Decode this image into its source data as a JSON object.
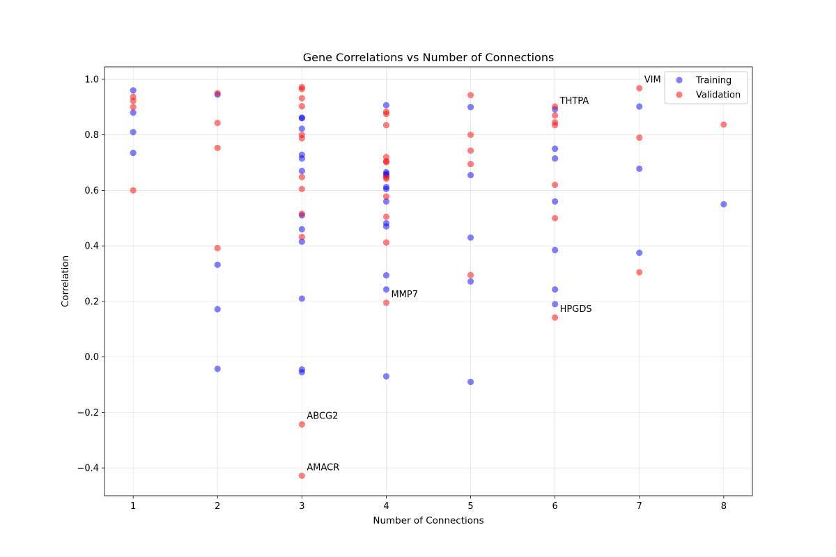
{
  "chart_data": {
    "type": "scatter",
    "title": "Gene Correlations vs Number of Connections",
    "xlabel": "Number of Connections",
    "ylabel": "Correlation",
    "xlim": [
      0.66,
      8.34
    ],
    "ylim": [
      -0.5,
      1.045
    ],
    "x_ticks": [
      1,
      2,
      3,
      4,
      5,
      6,
      7,
      8
    ],
    "y_ticks": [
      -0.4,
      -0.2,
      0.0,
      0.2,
      0.4,
      0.6,
      0.8,
      1.0
    ],
    "y_tick_labels": [
      "−0.4",
      "−0.2",
      "0.0",
      "0.2",
      "0.4",
      "0.6",
      "0.8",
      "1.0"
    ],
    "grid": true,
    "legend_position": "upper right",
    "series": [
      {
        "name": "Training",
        "color": "#0000ff",
        "points": [
          [
            1,
            0.96
          ],
          [
            1,
            0.88
          ],
          [
            1,
            0.81
          ],
          [
            1,
            0.735
          ],
          [
            2,
            0.945
          ],
          [
            2,
            0.332
          ],
          [
            2,
            0.172
          ],
          [
            2,
            -0.043
          ],
          [
            3,
            0.862
          ],
          [
            3,
            0.86
          ],
          [
            3,
            0.822
          ],
          [
            3,
            0.728
          ],
          [
            3,
            0.715
          ],
          [
            3,
            0.67
          ],
          [
            3,
            0.51
          ],
          [
            3,
            0.46
          ],
          [
            3,
            0.415
          ],
          [
            3,
            0.21
          ],
          [
            3,
            -0.045
          ],
          [
            3,
            -0.055
          ],
          [
            4,
            0.907
          ],
          [
            4,
            0.665
          ],
          [
            4,
            0.66
          ],
          [
            4,
            0.655
          ],
          [
            4,
            0.612
          ],
          [
            4,
            0.605
          ],
          [
            4,
            0.56
          ],
          [
            4,
            0.482
          ],
          [
            4,
            0.47
          ],
          [
            4,
            0.294
          ],
          [
            4,
            0.243
          ],
          [
            4,
            -0.07
          ],
          [
            5,
            0.9
          ],
          [
            5,
            0.655
          ],
          [
            5,
            0.43
          ],
          [
            5,
            0.272
          ],
          [
            5,
            -0.09
          ],
          [
            6,
            0.892
          ],
          [
            6,
            0.75
          ],
          [
            6,
            0.715
          ],
          [
            6,
            0.56
          ],
          [
            6,
            0.385
          ],
          [
            6,
            0.243
          ],
          [
            6,
            0.19
          ],
          [
            7,
            0.902
          ],
          [
            7,
            0.678
          ],
          [
            7,
            0.375
          ],
          [
            8,
            0.55
          ]
        ]
      },
      {
        "name": "Validation",
        "color": "#ff0000",
        "points": [
          [
            1,
            0.937
          ],
          [
            1,
            0.922
          ],
          [
            1,
            0.9
          ],
          [
            1,
            0.6
          ],
          [
            2,
            0.95
          ],
          [
            2,
            0.843
          ],
          [
            2,
            0.753
          ],
          [
            2,
            0.392
          ],
          [
            3,
            0.972
          ],
          [
            3,
            0.965
          ],
          [
            3,
            0.932
          ],
          [
            3,
            0.903
          ],
          [
            3,
            0.8
          ],
          [
            3,
            0.788
          ],
          [
            3,
            0.648
          ],
          [
            3,
            0.605
          ],
          [
            3,
            0.516
          ],
          [
            3,
            0.432
          ],
          [
            3,
            -0.243
          ],
          [
            3,
            -0.428
          ],
          [
            4,
            0.883
          ],
          [
            4,
            0.875
          ],
          [
            4,
            0.835
          ],
          [
            4,
            0.72
          ],
          [
            4,
            0.705
          ],
          [
            4,
            0.702
          ],
          [
            4,
            0.648
          ],
          [
            4,
            0.642
          ],
          [
            4,
            0.578
          ],
          [
            4,
            0.505
          ],
          [
            4,
            0.412
          ],
          [
            4,
            0.195
          ],
          [
            5,
            0.943
          ],
          [
            5,
            0.8
          ],
          [
            5,
            0.743
          ],
          [
            5,
            0.695
          ],
          [
            5,
            0.295
          ],
          [
            6,
            0.902
          ],
          [
            6,
            0.87
          ],
          [
            6,
            0.845
          ],
          [
            6,
            0.835
          ],
          [
            6,
            0.62
          ],
          [
            6,
            0.5
          ],
          [
            6,
            0.142
          ],
          [
            7,
            0.968
          ],
          [
            7,
            0.79
          ],
          [
            7,
            0.305
          ],
          [
            8,
            0.837
          ]
        ]
      }
    ],
    "annotations": [
      {
        "text": "VIM",
        "x": 7,
        "y": 0.968
      },
      {
        "text": "THTPA",
        "x": 6,
        "y": 0.892
      },
      {
        "text": "MMP7",
        "x": 4,
        "y": 0.195
      },
      {
        "text": "HPGDS",
        "x": 6,
        "y": 0.142
      },
      {
        "text": "ABCG2",
        "x": 3,
        "y": -0.243
      },
      {
        "text": "AMACR",
        "x": 3,
        "y": -0.428
      }
    ]
  }
}
